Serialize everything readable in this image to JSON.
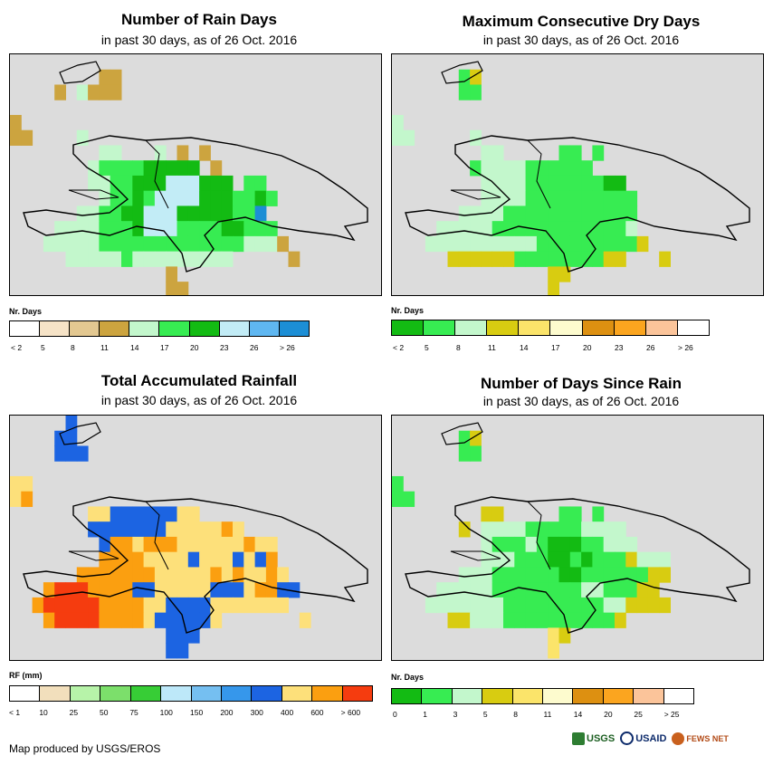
{
  "panels": [
    {
      "title": "Number of Rain Days",
      "subtitle": "in past 30 days, as of 26 Oct. 2016",
      "legend_title": "Nr. Days",
      "legend_labels": [
        "< 2",
        "5",
        "8",
        "11",
        "14",
        "17",
        "20",
        "23",
        "26",
        "> 26"
      ],
      "legend_colors": [
        "#ffffff",
        "#f6e3c7",
        "#e3c891",
        "#cca43f",
        "#c3f7cc",
        "#37ec52",
        "#13bb13",
        "#c2ecf6",
        "#5fb7f1",
        "#1c8ed5"
      ]
    },
    {
      "title": "Maximum Consecutive Dry Days",
      "subtitle": "in past 30 days, as of 26 Oct. 2016",
      "legend_title": "Nr. Days",
      "legend_labels": [
        "< 2",
        "5",
        "8",
        "11",
        "14",
        "17",
        "20",
        "23",
        "26",
        "> 26"
      ],
      "legend_colors": [
        "#13bb13",
        "#37ec52",
        "#c3f7cc",
        "#d8cc11",
        "#fbe46a",
        "#fdfbce",
        "#dd9011",
        "#fba51f",
        "#fbc49a",
        "#ffffff"
      ]
    },
    {
      "title": "Total Accumulated Rainfall",
      "subtitle": "in past 30 days, as of 26 Oct. 2016",
      "legend_title": "RF (mm)",
      "legend_labels": [
        "< 1",
        "10",
        "25",
        "50",
        "75",
        "100",
        "150",
        "200",
        "300",
        "400",
        "600",
        "> 600"
      ],
      "legend_colors": [
        "#ffffff",
        "#f2dfbc",
        "#b7f3a9",
        "#7cdf6b",
        "#37cd36",
        "#bde8f9",
        "#75bff1",
        "#3697eb",
        "#1c64e2",
        "#fde07a",
        "#fb9f10",
        "#f53c0f"
      ]
    },
    {
      "title": "Number of Days Since Rain",
      "subtitle": "in past 30 days, as of 26 Oct. 2016",
      "legend_title": "Nr. Days",
      "legend_labels": [
        "0",
        "1",
        "3",
        "5",
        "8",
        "11",
        "14",
        "20",
        "25",
        "> 25"
      ],
      "legend_colors": [
        "#13bb13",
        "#37ec52",
        "#c3f7cc",
        "#d8cc11",
        "#fbe46a",
        "#fdfbce",
        "#dd9011",
        "#fba51f",
        "#fbc49a",
        "#ffffff"
      ]
    }
  ],
  "footer": "Map produced by USGS/EROS",
  "logos": [
    "USGS",
    "USAID",
    "FEWS NET"
  ],
  "colors": {
    "map_background": "#dcdcdc"
  }
}
